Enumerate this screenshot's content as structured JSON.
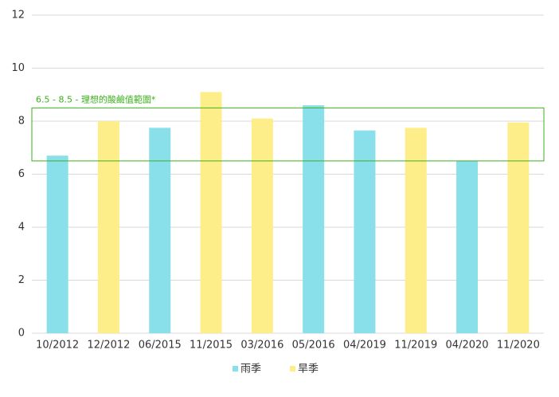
{
  "chart_data": {
    "type": "bar",
    "categories": [
      "10/2012",
      "12/2012",
      "06/2015",
      "11/2015",
      "03/2016",
      "05/2016",
      "04/2019",
      "11/2019",
      "04/2020",
      "11/2020"
    ],
    "series": [
      {
        "name": "雨季",
        "color": "#8ae0ea",
        "values": [
          6.7,
          null,
          7.75,
          null,
          null,
          8.6,
          7.65,
          null,
          6.5,
          null
        ]
      },
      {
        "name": "旱季",
        "color": "#fdee8a",
        "values": [
          null,
          8.0,
          null,
          9.1,
          8.1,
          null,
          null,
          7.75,
          null,
          7.95
        ]
      }
    ],
    "ylim": [
      0,
      12
    ],
    "yticks": [
      0,
      2,
      4,
      6,
      8,
      10,
      12
    ],
    "grid": true,
    "band": [
      6.5,
      8.5
    ],
    "band_color": "#3cb01e",
    "band_label": "6.5 - 8.5 - 理想的酸鹼值範圍*",
    "legend": "bottom"
  }
}
